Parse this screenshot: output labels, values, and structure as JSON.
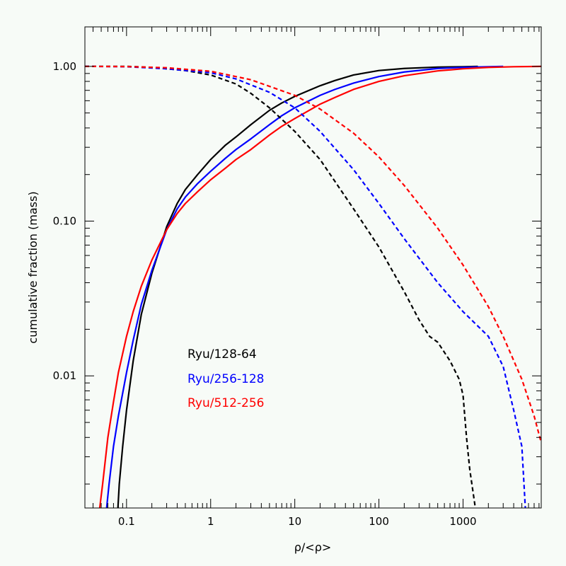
{
  "chart_data": {
    "type": "line",
    "title": "",
    "xlabel": "ρ/<ρ>",
    "ylabel": "cumulative fraction (mass)",
    "x_scale": "log",
    "y_scale": "log",
    "xlim": [
      0.032,
      8500
    ],
    "ylim": [
      0.0014,
      1.8
    ],
    "grid": false,
    "legend_placement": "center-left",
    "x_ticks": [
      {
        "value": 0.1,
        "label": "0.1"
      },
      {
        "value": 1,
        "label": "1"
      },
      {
        "value": 10,
        "label": "10"
      },
      {
        "value": 100,
        "label": "100"
      },
      {
        "value": 1000,
        "label": "1000"
      }
    ],
    "y_ticks": [
      {
        "value": 0.01,
        "label": "0.01"
      },
      {
        "value": 0.1,
        "label": "0.10"
      },
      {
        "value": 1,
        "label": "1.00"
      }
    ],
    "series": [
      {
        "name": "Ryu/128-64",
        "color": "#000000",
        "line_style": "solid",
        "x": [
          0.079,
          0.082,
          0.09,
          0.1,
          0.12,
          0.15,
          0.2,
          0.3,
          0.4,
          0.5,
          0.7,
          1,
          1.5,
          2,
          3,
          5,
          7,
          10,
          20,
          30,
          50,
          100,
          200,
          500,
          1000,
          1500
        ],
        "y": [
          0.0014,
          0.002,
          0.0035,
          0.006,
          0.0125,
          0.025,
          0.046,
          0.092,
          0.13,
          0.16,
          0.2,
          0.25,
          0.31,
          0.35,
          0.42,
          0.52,
          0.58,
          0.64,
          0.75,
          0.81,
          0.88,
          0.94,
          0.97,
          0.99,
          0.995,
          1.0
        ]
      },
      {
        "name": "Ryu/256-128",
        "color": "#0000ff",
        "line_style": "solid",
        "x": [
          0.058,
          0.062,
          0.07,
          0.08,
          0.1,
          0.12,
          0.15,
          0.2,
          0.3,
          0.4,
          0.5,
          0.7,
          1,
          1.5,
          2,
          3,
          5,
          7,
          10,
          20,
          30,
          50,
          100,
          200,
          500,
          1000,
          2000,
          3000
        ],
        "y": [
          0.0014,
          0.002,
          0.0035,
          0.0055,
          0.0105,
          0.017,
          0.029,
          0.048,
          0.088,
          0.12,
          0.143,
          0.175,
          0.21,
          0.255,
          0.29,
          0.34,
          0.42,
          0.48,
          0.54,
          0.65,
          0.71,
          0.78,
          0.86,
          0.92,
          0.97,
          0.985,
          0.995,
          1.0
        ]
      },
      {
        "name": "Ryu/512-256",
        "color": "#ff0000",
        "line_style": "solid",
        "x": [
          0.048,
          0.052,
          0.06,
          0.07,
          0.08,
          0.1,
          0.12,
          0.15,
          0.2,
          0.3,
          0.4,
          0.5,
          0.7,
          1,
          1.5,
          2,
          3,
          5,
          7,
          10,
          20,
          30,
          50,
          100,
          200,
          500,
          1000,
          2000,
          4000,
          8500
        ],
        "y": [
          0.0014,
          0.002,
          0.004,
          0.0068,
          0.0105,
          0.018,
          0.026,
          0.038,
          0.056,
          0.088,
          0.112,
          0.13,
          0.155,
          0.185,
          0.22,
          0.25,
          0.29,
          0.36,
          0.41,
          0.46,
          0.57,
          0.63,
          0.71,
          0.8,
          0.87,
          0.935,
          0.965,
          0.985,
          0.995,
          1.0
        ]
      },
      {
        "name": "",
        "color": "#000000",
        "line_style": "dashed",
        "x": [
          0.032,
          0.1,
          0.2,
          0.5,
          1,
          2,
          3,
          5,
          10,
          20,
          50,
          100,
          200,
          300,
          400,
          500,
          700,
          900,
          1000,
          1100,
          1200,
          1400
        ],
        "y": [
          1.0,
          1.0,
          0.985,
          0.94,
          0.88,
          0.77,
          0.67,
          0.54,
          0.38,
          0.25,
          0.12,
          0.068,
          0.035,
          0.023,
          0.018,
          0.0165,
          0.0125,
          0.0095,
          0.0075,
          0.004,
          0.0025,
          0.0014
        ]
      },
      {
        "name": "",
        "color": "#0000ff",
        "line_style": "dashed",
        "x": [
          0.032,
          0.1,
          0.3,
          1,
          2,
          5,
          10,
          20,
          50,
          100,
          200,
          500,
          1000,
          2000,
          3000,
          4000,
          5000,
          5500
        ],
        "y": [
          1.0,
          0.995,
          0.965,
          0.91,
          0.83,
          0.68,
          0.54,
          0.38,
          0.215,
          0.13,
          0.077,
          0.04,
          0.026,
          0.018,
          0.0115,
          0.006,
          0.0035,
          0.0014
        ]
      },
      {
        "name": "",
        "color": "#ff0000",
        "line_style": "dashed",
        "x": [
          0.032,
          0.1,
          0.3,
          1,
          3,
          10,
          20,
          50,
          100,
          200,
          500,
          1000,
          2000,
          3000,
          5000,
          7000,
          8500
        ],
        "y": [
          1.0,
          0.997,
          0.98,
          0.93,
          0.82,
          0.65,
          0.53,
          0.37,
          0.26,
          0.17,
          0.09,
          0.052,
          0.028,
          0.018,
          0.0095,
          0.0055,
          0.0037
        ]
      }
    ],
    "legend": [
      {
        "label": "Ryu/128-64",
        "color": "#000000"
      },
      {
        "label": "Ryu/256-128",
        "color": "#0000ff"
      },
      {
        "label": "Ryu/512-256",
        "color": "#ff0000"
      }
    ]
  }
}
